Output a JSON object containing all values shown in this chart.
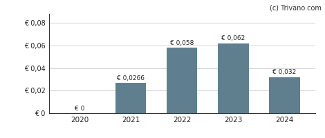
{
  "categories": [
    "2020",
    "2021",
    "2022",
    "2023",
    "2024"
  ],
  "values": [
    0,
    0.0266,
    0.058,
    0.062,
    0.032
  ],
  "labels": [
    "€ 0",
    "€ 0,0266",
    "€ 0,058",
    "€ 0,062",
    "€ 0,032"
  ],
  "bar_color": "#5f7f8f",
  "background_color": "#ffffff",
  "ylim": [
    0,
    0.088
  ],
  "yticks": [
    0,
    0.02,
    0.04,
    0.06,
    0.08
  ],
  "ytick_labels": [
    "€ 0",
    "€ 0,02",
    "€ 0,04",
    "€ 0,06",
    "€ 0,08"
  ],
  "watermark": "(c) Trivano.com",
  "bar_width": 0.6
}
